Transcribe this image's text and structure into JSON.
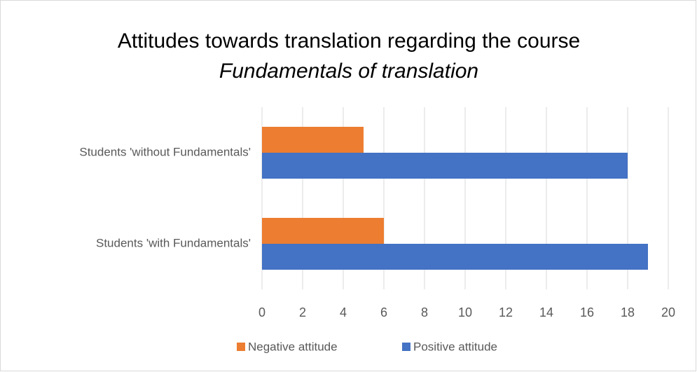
{
  "chart_data": {
    "type": "bar",
    "orientation": "horizontal",
    "title": "Attitudes towards translation regarding the course",
    "subtitle": "Fundamentals of translation",
    "categories": [
      "Students 'with Fundamentals'",
      "Students 'without Fundamentals'"
    ],
    "series": [
      {
        "name": "Negative attitude",
        "color": "#ed7d31",
        "values": [
          6,
          5
        ]
      },
      {
        "name": "Positive attitude",
        "color": "#4472c4",
        "values": [
          19,
          18
        ]
      }
    ],
    "xlim": [
      0,
      20
    ],
    "xticks": [
      0,
      2,
      4,
      6,
      8,
      10,
      12,
      14,
      16,
      18,
      20
    ],
    "grid": true,
    "legend": "bottom"
  }
}
